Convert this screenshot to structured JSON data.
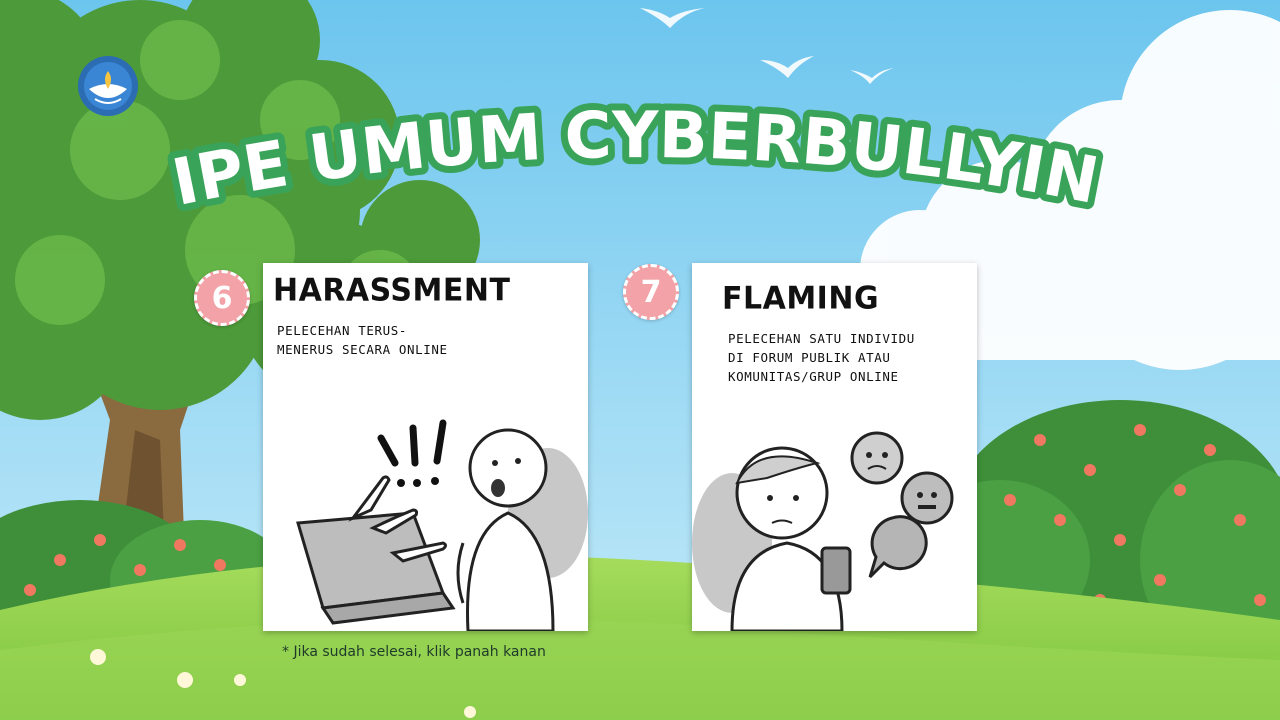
{
  "title": "TIPE UMUM CYBERBULLYING",
  "logo": {
    "icon": "tut-wuri-handayani-logo",
    "text": "TUT WURI HANDAYANI"
  },
  "cards": [
    {
      "number": "6",
      "heading": "HARASSMENT",
      "description": "PELECEHAN TERUS-\nMENERUS SECARA ONLINE",
      "illustration": "person-harassed-by-laptop-illustration"
    },
    {
      "number": "7",
      "heading": "FLAMING",
      "description": "PELECEHAN SATU INDIVIDU\nDI FORUM PUBLIK ATAU\nKOMUNITAS/GRUP ONLINE",
      "illustration": "person-with-phone-angry-emojis-illustration"
    }
  ],
  "note": "* Jika sudah selesai, klik panah kanan",
  "colors": {
    "title_fill": "#ffffff",
    "title_stroke": "#3aa35a",
    "badge": "#f3a3a8",
    "sky": "#8fd3f2",
    "grass": "#8fd24f"
  }
}
